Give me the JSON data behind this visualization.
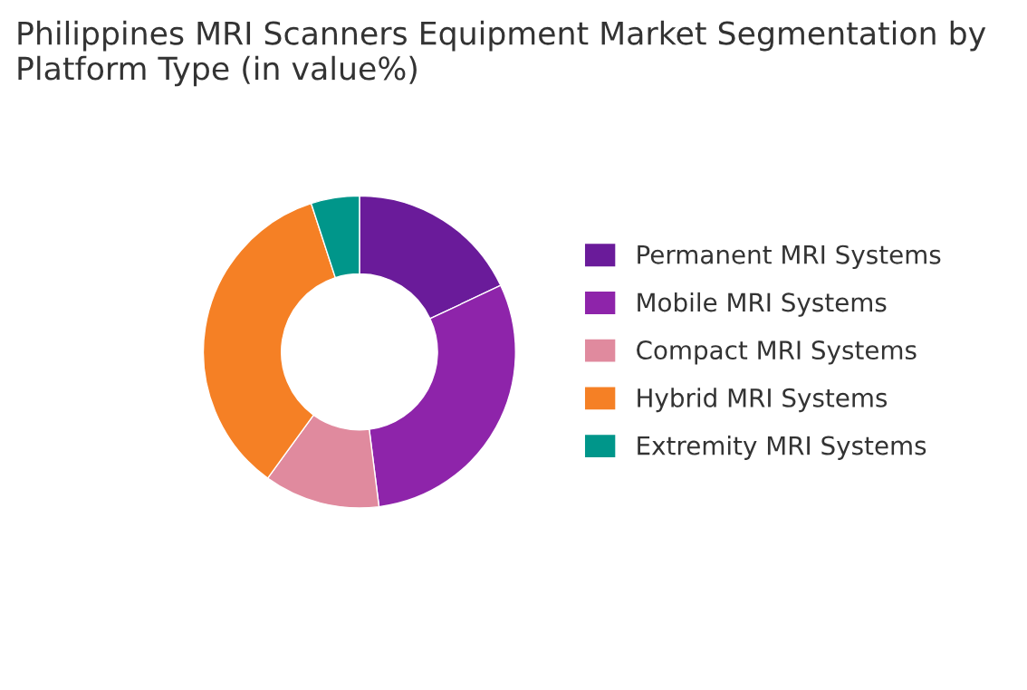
{
  "chart_data": {
    "type": "donut",
    "title": "Philippines MRI Scanners Equipment Market Segmentation by Platform Type (in value%)",
    "categories": [
      "Permanent MRI Systems",
      "Mobile MRI Systems",
      "Compact MRI Systems",
      "Hybrid MRI Systems",
      "Extremity MRI Systems"
    ],
    "values": [
      18,
      30,
      12,
      35,
      5
    ],
    "colors": [
      "#6a1b9a",
      "#8e24aa",
      "#e08a9e",
      "#f58025",
      "#00968a"
    ],
    "legend": "right"
  }
}
